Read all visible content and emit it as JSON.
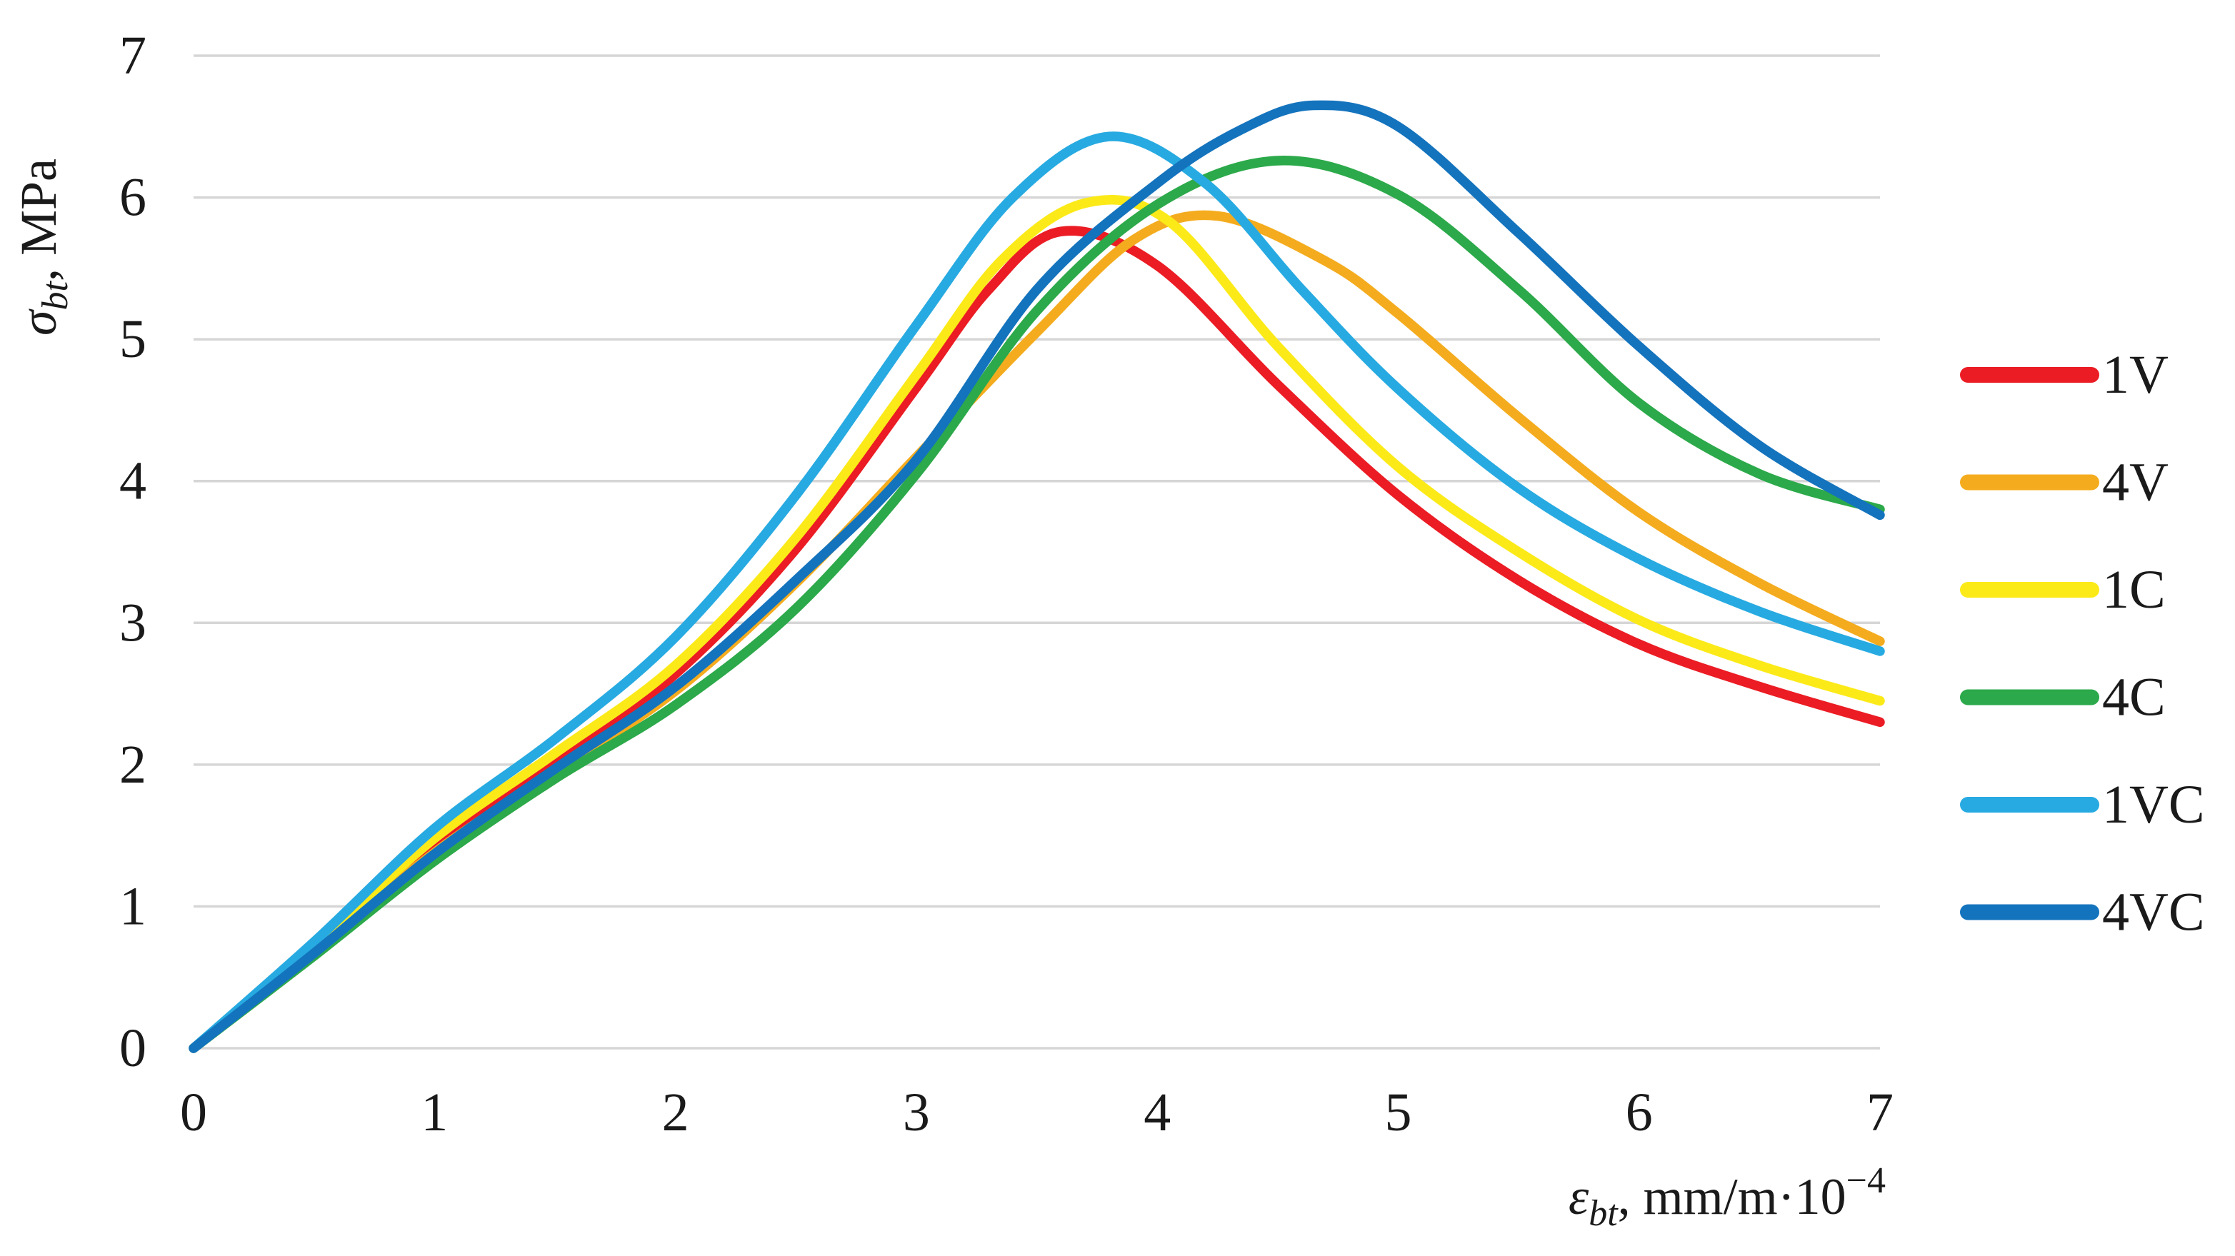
{
  "chart_data": {
    "type": "line",
    "title": "",
    "xlabel": {
      "symbol": "ε",
      "sub": "bt",
      "rest": ", mm/m·10",
      "sup": "−4"
    },
    "ylabel": {
      "symbol": "σ",
      "sub": "bt",
      "rest": ", MPa"
    },
    "xlim": [
      0,
      7
    ],
    "ylim": [
      0,
      7
    ],
    "xticks": [
      "0",
      "1",
      "2",
      "3",
      "4",
      "5",
      "6",
      "7"
    ],
    "yticks": [
      "0",
      "1",
      "2",
      "3",
      "4",
      "5",
      "6",
      "7"
    ],
    "grid": "horizontal",
    "grid_color": "#D6D6D6",
    "text_color": "#1a1a1a",
    "legend_position": "right",
    "series": [
      {
        "name": "1V",
        "color": "#EB1C24",
        "points": [
          [
            0,
            0
          ],
          [
            0.5,
            0.7
          ],
          [
            1,
            1.44
          ],
          [
            1.5,
            2.02
          ],
          [
            2,
            2.64
          ],
          [
            2.5,
            3.52
          ],
          [
            3,
            4.66
          ],
          [
            3.3,
            5.35
          ],
          [
            3.6,
            5.76
          ],
          [
            4,
            5.52
          ],
          [
            4.5,
            4.68
          ],
          [
            5,
            3.9
          ],
          [
            5.5,
            3.3
          ],
          [
            6,
            2.85
          ],
          [
            6.5,
            2.55
          ],
          [
            7,
            2.3
          ]
        ]
      },
      {
        "name": "4V",
        "color": "#F4AC1E",
        "points": [
          [
            0,
            0
          ],
          [
            0.5,
            0.68
          ],
          [
            1,
            1.38
          ],
          [
            1.5,
            1.95
          ],
          [
            2,
            2.52
          ],
          [
            2.5,
            3.28
          ],
          [
            3,
            4.17
          ],
          [
            3.5,
            5.05
          ],
          [
            3.9,
            5.7
          ],
          [
            4.25,
            5.87
          ],
          [
            4.7,
            5.55
          ],
          [
            5,
            5.18
          ],
          [
            5.5,
            4.45
          ],
          [
            6,
            3.78
          ],
          [
            6.5,
            3.28
          ],
          [
            7,
            2.87
          ]
        ]
      },
      {
        "name": "1C",
        "color": "#FBEA18",
        "points": [
          [
            0,
            0
          ],
          [
            0.5,
            0.72
          ],
          [
            1,
            1.48
          ],
          [
            1.5,
            2.08
          ],
          [
            2,
            2.7
          ],
          [
            2.5,
            3.6
          ],
          [
            3,
            4.75
          ],
          [
            3.35,
            5.55
          ],
          [
            3.7,
            5.96
          ],
          [
            4.05,
            5.83
          ],
          [
            4.5,
            4.95
          ],
          [
            5,
            4.1
          ],
          [
            5.5,
            3.5
          ],
          [
            6,
            3.02
          ],
          [
            6.5,
            2.7
          ],
          [
            7,
            2.45
          ]
        ]
      },
      {
        "name": "4C",
        "color": "#2CA94A",
        "points": [
          [
            0,
            0
          ],
          [
            0.5,
            0.65
          ],
          [
            1,
            1.32
          ],
          [
            1.5,
            1.9
          ],
          [
            2,
            2.42
          ],
          [
            2.5,
            3.1
          ],
          [
            3,
            4.05
          ],
          [
            3.5,
            5.2
          ],
          [
            4,
            5.95
          ],
          [
            4.5,
            6.26
          ],
          [
            5,
            6.02
          ],
          [
            5.5,
            5.35
          ],
          [
            6,
            4.55
          ],
          [
            6.5,
            4.05
          ],
          [
            7,
            3.8
          ]
        ]
      },
      {
        "name": "1VC",
        "color": "#27AAE1",
        "points": [
          [
            0,
            0
          ],
          [
            0.5,
            0.75
          ],
          [
            1,
            1.55
          ],
          [
            1.5,
            2.18
          ],
          [
            2,
            2.9
          ],
          [
            2.5,
            3.9
          ],
          [
            3,
            5.1
          ],
          [
            3.4,
            6.0
          ],
          [
            3.8,
            6.43
          ],
          [
            4.2,
            6.1
          ],
          [
            4.6,
            5.35
          ],
          [
            5,
            4.65
          ],
          [
            5.5,
            3.95
          ],
          [
            6,
            3.45
          ],
          [
            6.5,
            3.08
          ],
          [
            7,
            2.8
          ]
        ]
      },
      {
        "name": "4VC",
        "color": "#1473BD",
        "points": [
          [
            0,
            0
          ],
          [
            0.5,
            0.67
          ],
          [
            1,
            1.37
          ],
          [
            1.5,
            1.97
          ],
          [
            2,
            2.55
          ],
          [
            2.5,
            3.3
          ],
          [
            3,
            4.15
          ],
          [
            3.5,
            5.35
          ],
          [
            4,
            6.1
          ],
          [
            4.35,
            6.48
          ],
          [
            4.65,
            6.65
          ],
          [
            5,
            6.5
          ],
          [
            5.5,
            5.75
          ],
          [
            6,
            4.95
          ],
          [
            6.5,
            4.25
          ],
          [
            7,
            3.76
          ]
        ]
      }
    ]
  }
}
